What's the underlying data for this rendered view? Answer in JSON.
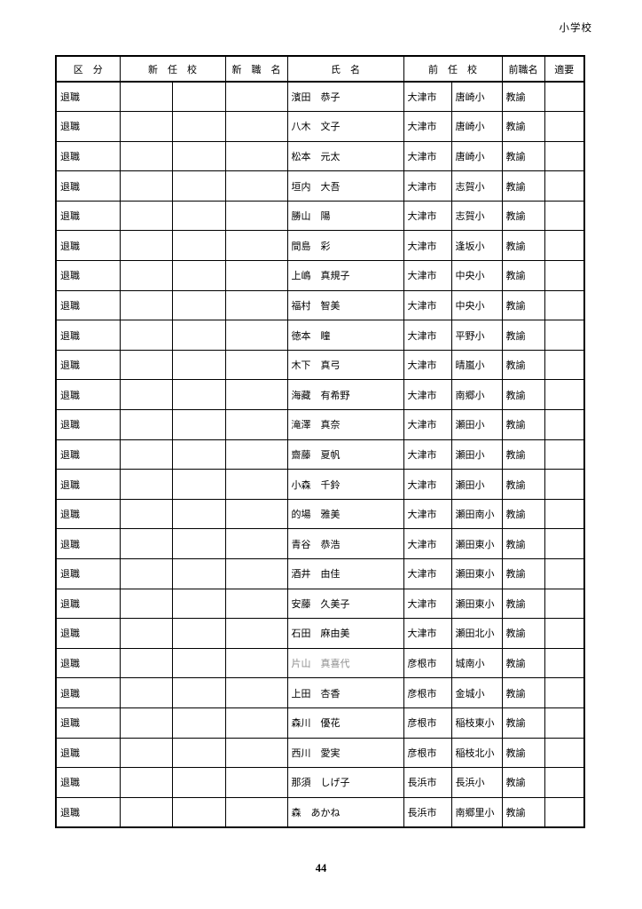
{
  "page": {
    "corner_label": "小学校",
    "page_number": "44"
  },
  "colors": {
    "grid": "#000000",
    "text": "#000000",
    "muted_name": "#8f8f8f",
    "paper": "#ffffff"
  },
  "table": {
    "headers": {
      "category": "区　分",
      "new_school": "新　任　校",
      "new_title": "新　職　名",
      "name": "氏　名",
      "prev_school": "前　任　校",
      "prev_title": "前職名",
      "remarks": "適要"
    },
    "rows": [
      {
        "category": "退職",
        "new_school_city": "",
        "new_school": "",
        "new_title": "",
        "name": "濱田　恭子",
        "prev_city": "大津市",
        "prev_school": "唐崎小",
        "prev_title": "教諭",
        "remarks": ""
      },
      {
        "category": "退職",
        "new_school_city": "",
        "new_school": "",
        "new_title": "",
        "name": "八木　文子",
        "prev_city": "大津市",
        "prev_school": "唐崎小",
        "prev_title": "教諭",
        "remarks": ""
      },
      {
        "category": "退職",
        "new_school_city": "",
        "new_school": "",
        "new_title": "",
        "name": "松本　元太",
        "prev_city": "大津市",
        "prev_school": "唐崎小",
        "prev_title": "教諭",
        "remarks": ""
      },
      {
        "category": "退職",
        "new_school_city": "",
        "new_school": "",
        "new_title": "",
        "name": "垣内　大吾",
        "prev_city": "大津市",
        "prev_school": "志賀小",
        "prev_title": "教諭",
        "remarks": ""
      },
      {
        "category": "退職",
        "new_school_city": "",
        "new_school": "",
        "new_title": "",
        "name": "勝山　陽",
        "prev_city": "大津市",
        "prev_school": "志賀小",
        "prev_title": "教諭",
        "remarks": ""
      },
      {
        "category": "退職",
        "new_school_city": "",
        "new_school": "",
        "new_title": "",
        "name": "間島　彩",
        "prev_city": "大津市",
        "prev_school": "逢坂小",
        "prev_title": "教諭",
        "remarks": ""
      },
      {
        "category": "退職",
        "new_school_city": "",
        "new_school": "",
        "new_title": "",
        "name": "上嶋　真規子",
        "prev_city": "大津市",
        "prev_school": "中央小",
        "prev_title": "教諭",
        "remarks": ""
      },
      {
        "category": "退職",
        "new_school_city": "",
        "new_school": "",
        "new_title": "",
        "name": "福村　智美",
        "prev_city": "大津市",
        "prev_school": "中央小",
        "prev_title": "教諭",
        "remarks": ""
      },
      {
        "category": "退職",
        "new_school_city": "",
        "new_school": "",
        "new_title": "",
        "name": "徳本　瞳",
        "prev_city": "大津市",
        "prev_school": "平野小",
        "prev_title": "教諭",
        "remarks": ""
      },
      {
        "category": "退職",
        "new_school_city": "",
        "new_school": "",
        "new_title": "",
        "name": "木下　真弓",
        "prev_city": "大津市",
        "prev_school": "晴嵐小",
        "prev_title": "教諭",
        "remarks": ""
      },
      {
        "category": "退職",
        "new_school_city": "",
        "new_school": "",
        "new_title": "",
        "name": "海藏　有希野",
        "prev_city": "大津市",
        "prev_school": "南郷小",
        "prev_title": "教諭",
        "remarks": ""
      },
      {
        "category": "退職",
        "new_school_city": "",
        "new_school": "",
        "new_title": "",
        "name": "滝澤　真奈",
        "prev_city": "大津市",
        "prev_school": "瀬田小",
        "prev_title": "教諭",
        "remarks": ""
      },
      {
        "category": "退職",
        "new_school_city": "",
        "new_school": "",
        "new_title": "",
        "name": "齋藤　夏帆",
        "prev_city": "大津市",
        "prev_school": "瀬田小",
        "prev_title": "教諭",
        "remarks": ""
      },
      {
        "category": "退職",
        "new_school_city": "",
        "new_school": "",
        "new_title": "",
        "name": "小森　千鈴",
        "prev_city": "大津市",
        "prev_school": "瀬田小",
        "prev_title": "教諭",
        "remarks": ""
      },
      {
        "category": "退職",
        "new_school_city": "",
        "new_school": "",
        "new_title": "",
        "name": "的場　雅美",
        "prev_city": "大津市",
        "prev_school": "瀬田南小",
        "prev_title": "教諭",
        "remarks": ""
      },
      {
        "category": "退職",
        "new_school_city": "",
        "new_school": "",
        "new_title": "",
        "name": "青谷　恭浩",
        "prev_city": "大津市",
        "prev_school": "瀬田東小",
        "prev_title": "教諭",
        "remarks": ""
      },
      {
        "category": "退職",
        "new_school_city": "",
        "new_school": "",
        "new_title": "",
        "name": "酒井　由佳",
        "prev_city": "大津市",
        "prev_school": "瀬田東小",
        "prev_title": "教諭",
        "remarks": ""
      },
      {
        "category": "退職",
        "new_school_city": "",
        "new_school": "",
        "new_title": "",
        "name": "安藤　久美子",
        "prev_city": "大津市",
        "prev_school": "瀬田東小",
        "prev_title": "教諭",
        "remarks": ""
      },
      {
        "category": "退職",
        "new_school_city": "",
        "new_school": "",
        "new_title": "",
        "name": "石田　麻由美",
        "prev_city": "大津市",
        "prev_school": "瀬田北小",
        "prev_title": "教諭",
        "remarks": ""
      },
      {
        "category": "退職",
        "new_school_city": "",
        "new_school": "",
        "new_title": "",
        "name": "片山　真喜代",
        "prev_city": "彦根市",
        "prev_school": "城南小",
        "prev_title": "教諭",
        "remarks": "",
        "name_muted": true
      },
      {
        "category": "退職",
        "new_school_city": "",
        "new_school": "",
        "new_title": "",
        "name": "上田　杏香",
        "prev_city": "彦根市",
        "prev_school": "金城小",
        "prev_title": "教諭",
        "remarks": ""
      },
      {
        "category": "退職",
        "new_school_city": "",
        "new_school": "",
        "new_title": "",
        "name": "森川　優花",
        "prev_city": "彦根市",
        "prev_school": "稲枝東小",
        "prev_title": "教諭",
        "remarks": ""
      },
      {
        "category": "退職",
        "new_school_city": "",
        "new_school": "",
        "new_title": "",
        "name": "西川　愛実",
        "prev_city": "彦根市",
        "prev_school": "稲枝北小",
        "prev_title": "教諭",
        "remarks": ""
      },
      {
        "category": "退職",
        "new_school_city": "",
        "new_school": "",
        "new_title": "",
        "name": "那須　しげ子",
        "prev_city": "長浜市",
        "prev_school": "長浜小",
        "prev_title": "教諭",
        "remarks": ""
      },
      {
        "category": "退職",
        "new_school_city": "",
        "new_school": "",
        "new_title": "",
        "name": "森　あかね",
        "prev_city": "長浜市",
        "prev_school": "南郷里小",
        "prev_title": "教諭",
        "remarks": ""
      }
    ]
  }
}
